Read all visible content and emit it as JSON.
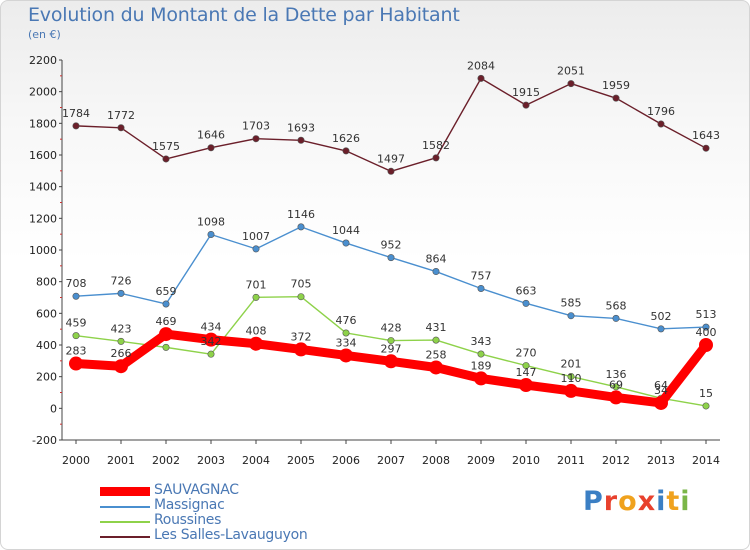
{
  "title": "Evolution du Montant de la Dette par Habitant",
  "subtitle": "(en €)",
  "brand": {
    "letters": [
      "P",
      "r",
      "o",
      "x",
      "i",
      "t",
      "i"
    ],
    "colors": [
      "#3b7fc4",
      "#e8412d",
      "#f0a21e",
      "#e8412d",
      "#3b7fc4",
      "#f0a21e",
      "#7ab648"
    ]
  },
  "chart_data": {
    "type": "line",
    "x": [
      "2000",
      "2001",
      "2002",
      "2003",
      "2004",
      "2005",
      "2006",
      "2007",
      "2008",
      "2009",
      "2010",
      "2011",
      "2012",
      "2013",
      "2014"
    ],
    "ylim": [
      -200,
      2200
    ],
    "yticks": [
      "-200",
      "0",
      "200",
      "400",
      "600",
      "800",
      "1000",
      "1200",
      "1400",
      "1600",
      "1800",
      "2000",
      "2200"
    ],
    "grid": false,
    "legend_position": "bottom-left",
    "series": [
      {
        "name": "SAUVAGNAC",
        "color": "#ff0000",
        "values": [
          283,
          266,
          469,
          434,
          408,
          372,
          334,
          297,
          258,
          189,
          147,
          110,
          69,
          34,
          400
        ],
        "labels": [
          "283",
          "266",
          "469",
          "434",
          "408",
          "372",
          "334",
          "297",
          "258",
          "189",
          "147",
          "110",
          "69",
          "34",
          "400"
        ]
      },
      {
        "name": "Massignac",
        "color": "#4a8fcf",
        "values": [
          708,
          726,
          659,
          1098,
          1007,
          1146,
          1044,
          952,
          864,
          757,
          663,
          585,
          568,
          502,
          513
        ],
        "labels": [
          "708",
          "726",
          "659",
          "1098",
          "1007",
          "1146",
          "1044",
          "952",
          "864",
          "757",
          "663",
          "585",
          "568",
          "502",
          "513"
        ]
      },
      {
        "name": "Roussines",
        "color": "#8ed24a",
        "values": [
          459,
          423,
          385,
          342,
          701,
          705,
          476,
          428,
          431,
          343,
          270,
          201,
          136,
          64,
          15
        ],
        "labels": [
          "459",
          "423",
          "",
          "342",
          "701",
          "705",
          "476",
          "428",
          "431",
          "343",
          "270",
          "201",
          "136",
          "64",
          "15"
        ]
      },
      {
        "name": "Les Salles-Lavauguyon",
        "color": "#6b1f2a",
        "values": [
          1784,
          1772,
          1575,
          1646,
          1703,
          1693,
          1626,
          1497,
          1582,
          2084,
          1915,
          2051,
          1959,
          1796,
          1643
        ],
        "labels": [
          "1784",
          "1772",
          "1575",
          "1646",
          "1703",
          "1693",
          "1626",
          "1497",
          "1582",
          "2084",
          "1915",
          "2051",
          "1959",
          "1796",
          "1643"
        ]
      }
    ]
  }
}
